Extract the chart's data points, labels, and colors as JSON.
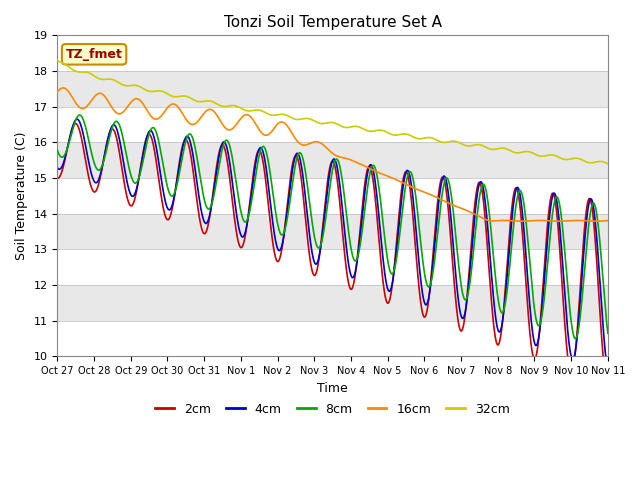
{
  "title": "Tonzi Soil Temperature Set A",
  "xlabel": "Time",
  "ylabel": "Soil Temperature (C)",
  "ylim": [
    10.0,
    19.0
  ],
  "yticks": [
    10.0,
    11.0,
    12.0,
    13.0,
    14.0,
    15.0,
    16.0,
    17.0,
    18.0,
    19.0
  ],
  "xtick_labels": [
    "Oct 27",
    "Oct 28",
    "Oct 29",
    "Oct 30",
    "Oct 31",
    "Nov 1",
    "Nov 2",
    "Nov 3",
    "Nov 4",
    "Nov 5",
    "Nov 6",
    "Nov 7",
    "Nov 8",
    "Nov 9",
    "Nov 10",
    "Nov 11"
  ],
  "series_colors": {
    "2cm": "#cc0000",
    "4cm": "#0000cc",
    "8cm": "#00aa00",
    "16cm": "#ff8800",
    "32cm": "#cccc00"
  },
  "legend_label": "TZ_fmet",
  "legend_box_color": "#ffffcc",
  "legend_box_edge": "#cc8800",
  "plot_bg_color": "#e8e8e8",
  "grid_stripe_color": "#d0d0d0",
  "line_width": 1.2,
  "n_days": 15,
  "pts_per_day": 96
}
